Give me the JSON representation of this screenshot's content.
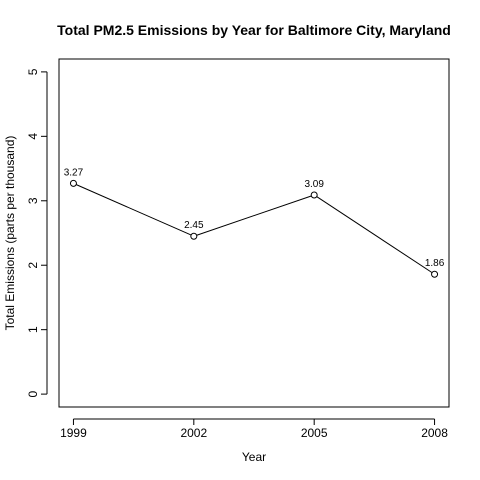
{
  "chart_data": {
    "type": "line",
    "title": "Total PM2.5 Emissions by Year for Baltimore City, Maryland",
    "xlabel": "Year",
    "ylabel": "Total Emissions (parts per thousand)",
    "x": [
      1999,
      2002,
      2005,
      2008
    ],
    "x_tick_labels": [
      "1999",
      "2002",
      "2005",
      "2008"
    ],
    "values": [
      3.27,
      2.45,
      3.09,
      1.86
    ],
    "data_labels": [
      "3.27",
      "2.45",
      "3.09",
      "1.86"
    ],
    "y_ticks": [
      0,
      1,
      2,
      3,
      4,
      5
    ],
    "y_tick_labels": [
      "0",
      "1",
      "2",
      "3",
      "4",
      "5"
    ],
    "ylim": [
      -0.2,
      5.2
    ],
    "xlim": [
      1998.64,
      2008.36
    ],
    "grid": false,
    "markers": "open-circle",
    "line_color": "#000000"
  }
}
